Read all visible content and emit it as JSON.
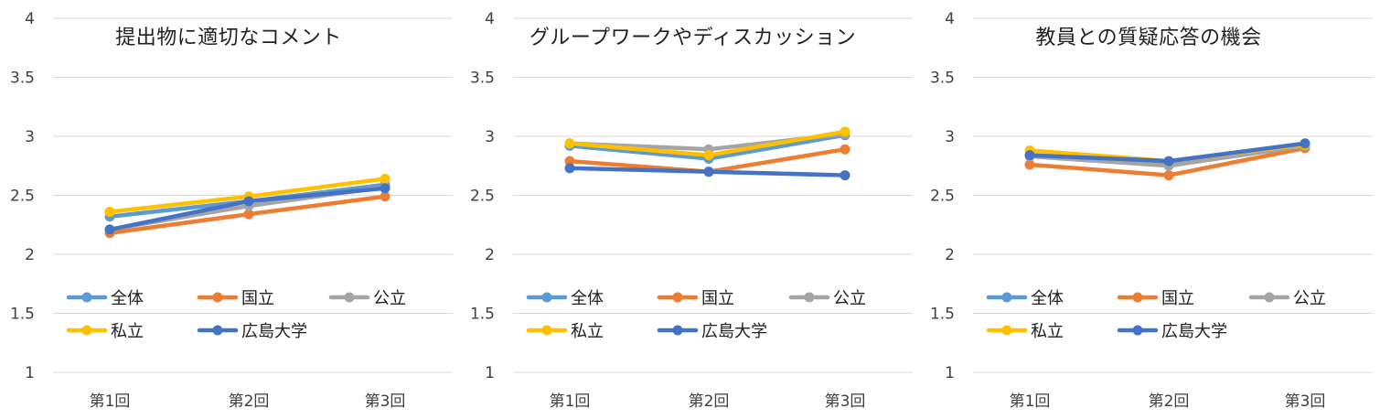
{
  "figure": {
    "series_colors": {
      "全体": "#5B9BD5",
      "国立": "#ED7D31",
      "公立": "#A5A5A5",
      "私立": "#FFC000",
      "広島大学": "#4472C4"
    },
    "grid_color": "#D9D9D9"
  },
  "chart_data": [
    {
      "type": "line",
      "title": "提出物に適切なコメント",
      "categories": [
        "第1回",
        "第2回",
        "第3回"
      ],
      "ylim": [
        1,
        4
      ],
      "yticks": [
        "1",
        "1.5",
        "2",
        "2.5",
        "3",
        "3.5",
        "4"
      ],
      "grid": true,
      "legend": "bottom-inside",
      "series": [
        {
          "name": "全体",
          "values": [
            2.32,
            2.45,
            2.59
          ]
        },
        {
          "name": "国立",
          "values": [
            2.18,
            2.34,
            2.49
          ]
        },
        {
          "name": "公立",
          "values": [
            2.21,
            2.41,
            2.57
          ]
        },
        {
          "name": "私立",
          "values": [
            2.36,
            2.49,
            2.64
          ]
        },
        {
          "name": "広島大学",
          "values": [
            2.21,
            2.45,
            2.56
          ]
        }
      ]
    },
    {
      "type": "line",
      "title": "グループワークやディスカッション",
      "categories": [
        "第1回",
        "第2回",
        "第3回"
      ],
      "ylim": [
        1,
        4
      ],
      "yticks": [
        "1",
        "1.5",
        "2",
        "2.5",
        "3",
        "3.5",
        "4"
      ],
      "grid": true,
      "legend": "bottom-inside",
      "series": [
        {
          "name": "全体",
          "values": [
            2.92,
            2.81,
            3.01
          ]
        },
        {
          "name": "国立",
          "values": [
            2.79,
            2.7,
            2.89
          ]
        },
        {
          "name": "公立",
          "values": [
            2.94,
            2.89,
            3.02
          ]
        },
        {
          "name": "私立",
          "values": [
            2.94,
            2.84,
            3.04
          ]
        },
        {
          "name": "広島大学",
          "values": [
            2.73,
            2.7,
            2.67
          ]
        }
      ]
    },
    {
      "type": "line",
      "title": "教員との質疑応答の機会",
      "categories": [
        "第1回",
        "第2回",
        "第3回"
      ],
      "ylim": [
        1,
        4
      ],
      "yticks": [
        "1",
        "1.5",
        "2",
        "2.5",
        "3",
        "3.5",
        "4"
      ],
      "grid": true,
      "legend": "bottom-inside",
      "series": [
        {
          "name": "全体",
          "values": [
            2.84,
            2.78,
            2.93
          ]
        },
        {
          "name": "国立",
          "values": [
            2.76,
            2.67,
            2.9
          ]
        },
        {
          "name": "公立",
          "values": [
            2.83,
            2.75,
            2.92
          ]
        },
        {
          "name": "私立",
          "values": [
            2.88,
            2.79,
            2.93
          ]
        },
        {
          "name": "広島大学",
          "values": [
            2.84,
            2.79,
            2.94
          ]
        }
      ]
    }
  ]
}
